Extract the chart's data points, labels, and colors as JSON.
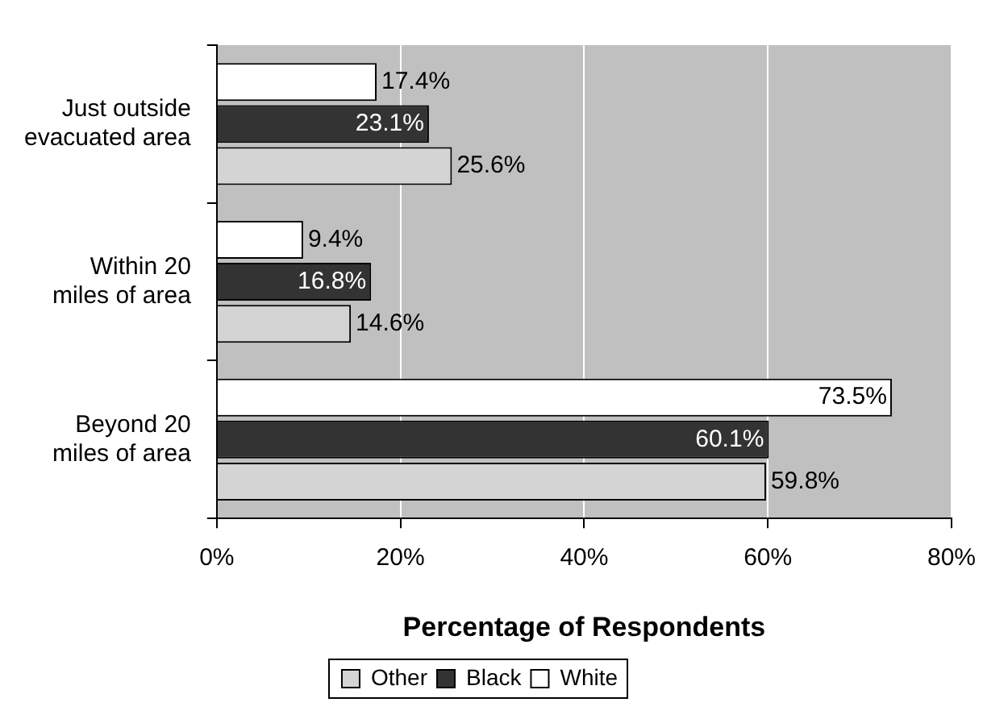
{
  "chart_data": {
    "type": "bar",
    "orientation": "horizontal",
    "xlabel": "Percentage of Respondents",
    "categories": [
      "Just outside evacuated area",
      "Within 20 miles of area",
      "Beyond 20 miles of area"
    ],
    "series": [
      {
        "name": "White",
        "color": "#ffffff",
        "values": [
          17.4,
          9.4,
          73.5
        ],
        "value_labels": [
          "17.4%",
          "9.4%",
          "73.5%"
        ]
      },
      {
        "name": "Black",
        "color": "#333333",
        "values": [
          23.1,
          16.8,
          60.1
        ],
        "value_labels": [
          "23.1%",
          "16.8%",
          "60.1%"
        ]
      },
      {
        "name": "Other",
        "color": "#d4d4d4",
        "values": [
          25.6,
          14.6,
          59.8
        ],
        "value_labels": [
          "25.6%",
          "14.6%",
          "59.8%"
        ]
      }
    ],
    "xlim": [
      0,
      80
    ],
    "xticks": [
      {
        "value": 0,
        "label": "0%"
      },
      {
        "value": 20,
        "label": "20%"
      },
      {
        "value": 40,
        "label": "40%"
      },
      {
        "value": 60,
        "label": "60%"
      },
      {
        "value": 80,
        "label": "80%"
      }
    ],
    "grid": "x",
    "legend": "bottom"
  }
}
